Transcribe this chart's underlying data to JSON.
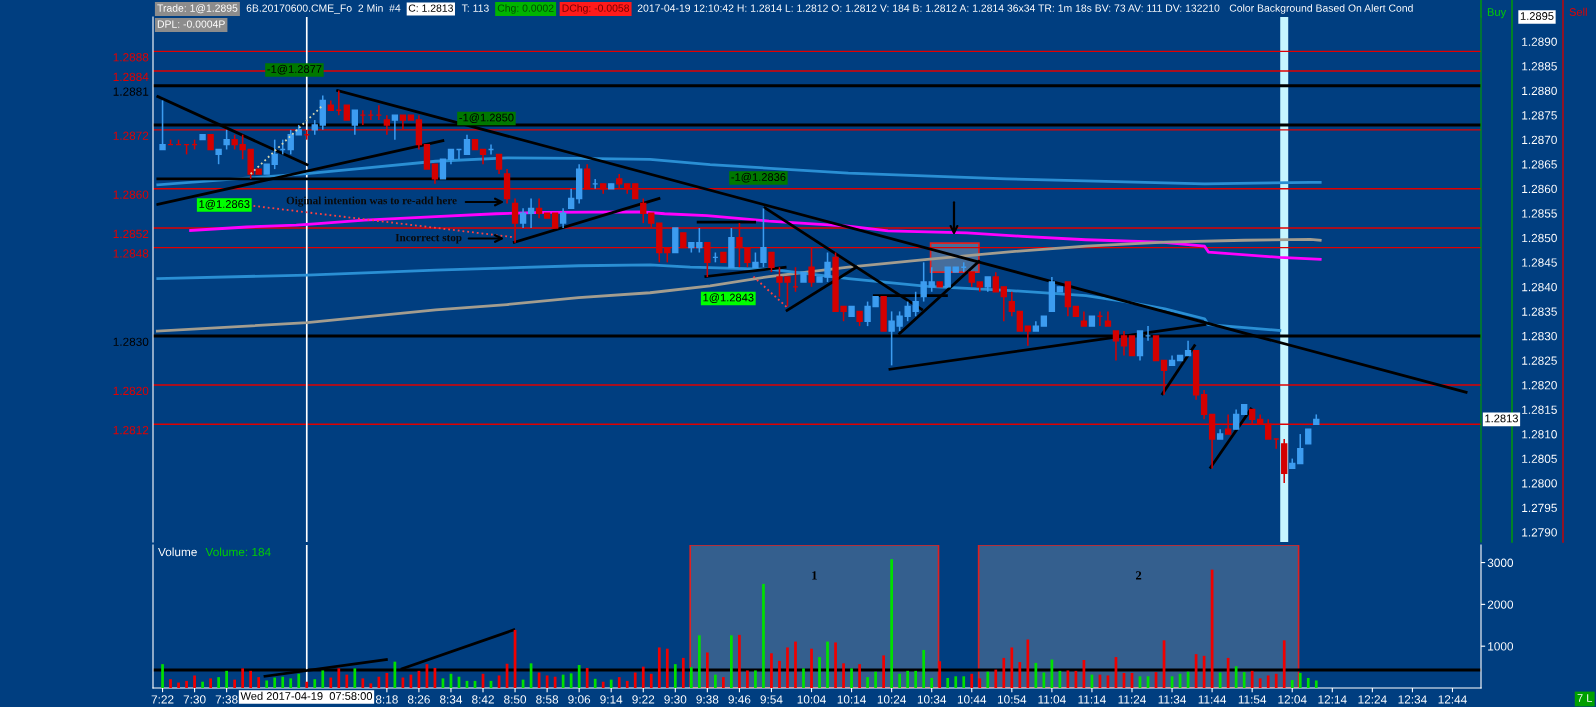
{
  "chart_data": [
    {
      "type": "candlestick",
      "x": [
        7.3667,
        7.4,
        7.4333,
        7.4667,
        7.5,
        7.5333,
        7.5667,
        7.6,
        7.6333,
        7.6667,
        7.7,
        7.7333,
        7.7667,
        7.8,
        7.8333,
        7.8667,
        7.9,
        7.9333,
        7.9667,
        8,
        8.0333,
        8.0667,
        8.1,
        8.1333,
        8.1667,
        8.2,
        8.2333,
        8.2667,
        8.3,
        8.3333,
        8.3667,
        8.4,
        8.4333,
        8.4667,
        8.5,
        8.5333,
        8.5667,
        8.6,
        8.6333,
        8.6667,
        8.7,
        8.7333,
        8.7667,
        8.8,
        8.8333,
        8.8667,
        8.9,
        8.9333,
        8.9667,
        9,
        9.0333,
        9.0667,
        9.1,
        9.1333,
        9.1667,
        9.2,
        9.2333,
        9.2667,
        9.3,
        9.3333,
        9.3667,
        9.4,
        9.4333,
        9.4667,
        9.5,
        9.5333,
        9.5667,
        9.6,
        9.6333,
        9.6667,
        9.7,
        9.7333,
        9.7667,
        9.8,
        9.8333,
        9.8667,
        9.9,
        9.9333,
        9.9667,
        10,
        10.0333,
        10.0667,
        10.1,
        10.1333,
        10.1667,
        10.2,
        10.2333,
        10.2667,
        10.3,
        10.3333,
        10.3667,
        10.4,
        10.4333,
        10.4667,
        10.5,
        10.5333,
        10.5667,
        10.6,
        10.6333,
        10.6667,
        10.7,
        10.7333,
        10.7667,
        10.8,
        10.8333,
        10.8667,
        10.9,
        10.9333,
        10.9667,
        11,
        11.0333,
        11.0667,
        11.1,
        11.1333,
        11.1667,
        11.2,
        11.2333,
        11.2667,
        11.3,
        11.3333,
        11.3667,
        11.4,
        11.4333,
        11.4667,
        11.5,
        11.5333,
        11.5667,
        11.6,
        11.6333,
        11.6667,
        11.7,
        11.7333,
        11.7667,
        11.8,
        11.8333,
        11.8667,
        11.9,
        11.9333,
        11.9667,
        12,
        12.0333,
        12.0667,
        12.1,
        12.1333,
        12.1667
      ],
      "ohlc": [
        [
          1.2868,
          1.2878,
          1.2868,
          1.2869
        ],
        [
          1.2869,
          1.287,
          1.2869,
          1.2869
        ],
        [
          1.2869,
          1.287,
          1.2869,
          1.2869
        ],
        [
          1.2869,
          1.2869,
          1.2867,
          1.2869
        ],
        [
          1.2869,
          1.287,
          1.2868,
          1.2869
        ],
        [
          1.287,
          1.2871,
          1.287,
          1.2871
        ],
        [
          1.2871,
          1.2871,
          1.2868,
          1.2868
        ],
        [
          1.2867,
          1.2868,
          1.2865,
          1.2868
        ],
        [
          1.2869,
          1.2872,
          1.2868,
          1.287
        ],
        [
          1.287,
          1.2871,
          1.2868,
          1.2869
        ],
        [
          1.2869,
          1.2871,
          1.2866,
          1.2868
        ],
        [
          1.2868,
          1.2868,
          1.2862,
          1.2863
        ],
        [
          1.2864,
          1.2864,
          1.2863,
          1.2863
        ],
        [
          1.2863,
          1.2865,
          1.2863,
          1.2865
        ],
        [
          1.2865,
          1.287,
          1.2864,
          1.2867
        ],
        [
          1.2868,
          1.287,
          1.2867,
          1.2868
        ],
        [
          1.2868,
          1.2872,
          1.2867,
          1.2871
        ],
        [
          1.2871,
          1.2873,
          1.2871,
          1.2872
        ],
        [
          1.2871,
          1.2872,
          1.287,
          1.2871
        ],
        [
          1.2872,
          1.2874,
          1.2871,
          1.2873
        ],
        [
          1.2873,
          1.2879,
          1.2872,
          1.2878
        ],
        [
          1.2877,
          1.2878,
          1.2876,
          1.2876
        ],
        [
          1.2876,
          1.288,
          1.2875,
          1.2876
        ],
        [
          1.2877,
          1.2877,
          1.2874,
          1.2874
        ],
        [
          1.2873,
          1.2876,
          1.2871,
          1.2876
        ],
        [
          1.2875,
          1.2876,
          1.2873,
          1.2875
        ],
        [
          1.2875,
          1.2876,
          1.2874,
          1.2875
        ],
        [
          1.2875,
          1.2877,
          1.2874,
          1.2875
        ],
        [
          1.2874,
          1.2875,
          1.2871,
          1.2873
        ],
        [
          1.2874,
          1.2875,
          1.287,
          1.2875
        ],
        [
          1.2875,
          1.2875,
          1.2872,
          1.2874
        ],
        [
          1.2875,
          1.2875,
          1.2874,
          1.2874
        ],
        [
          1.2874,
          1.2875,
          1.2868,
          1.2869
        ],
        [
          1.2869,
          1.2869,
          1.2864,
          1.2864
        ],
        [
          1.2865,
          1.2865,
          1.2861,
          1.2862
        ],
        [
          1.2862,
          1.2866,
          1.2862,
          1.2866
        ],
        [
          1.2866,
          1.2868,
          1.2865,
          1.2868
        ],
        [
          1.2868,
          1.2868,
          1.2866,
          1.2868
        ],
        [
          1.2867,
          1.2871,
          1.2867,
          1.287
        ],
        [
          1.287,
          1.287,
          1.2868,
          1.2868
        ],
        [
          1.2868,
          1.2868,
          1.2865,
          1.2867
        ],
        [
          1.2868,
          1.2869,
          1.2867,
          1.2868
        ],
        [
          1.2867,
          1.2867,
          1.2863,
          1.2864
        ],
        [
          1.2863,
          1.2864,
          1.2857,
          1.2858
        ],
        [
          1.2857,
          1.2858,
          1.2849,
          1.2853
        ],
        [
          1.2853,
          1.2856,
          1.2852,
          1.2855
        ],
        [
          1.2855,
          1.2858,
          1.2852,
          1.2856
        ],
        [
          1.2856,
          1.2858,
          1.2854,
          1.2855
        ],
        [
          1.2855,
          1.2855,
          1.2854,
          1.2854
        ],
        [
          1.2855,
          1.2855,
          1.2852,
          1.2852
        ],
        [
          1.2853,
          1.2856,
          1.2852,
          1.2855
        ],
        [
          1.2856,
          1.286,
          1.2856,
          1.2858
        ],
        [
          1.2858,
          1.2865,
          1.2857,
          1.2864
        ],
        [
          1.2864,
          1.2865,
          1.286,
          1.286
        ],
        [
          1.2861,
          1.2862,
          1.286,
          1.2861
        ],
        [
          1.2861,
          1.2861,
          1.2859,
          1.286
        ],
        [
          1.286,
          1.2861,
          1.286,
          1.2861
        ],
        [
          1.2862,
          1.2863,
          1.286,
          1.2861
        ],
        [
          1.2861,
          1.2861,
          1.2859,
          1.286
        ],
        [
          1.2861,
          1.2861,
          1.2858,
          1.2858
        ],
        [
          1.2857,
          1.2858,
          1.2853,
          1.2855
        ],
        [
          1.2855,
          1.2855,
          1.2852,
          1.2853
        ],
        [
          1.2853,
          1.2853,
          1.2845,
          1.2847
        ],
        [
          1.2848,
          1.2848,
          1.2845,
          1.2847
        ],
        [
          1.2847,
          1.2852,
          1.2847,
          1.2852
        ],
        [
          1.2851,
          1.2851,
          1.2848,
          1.2848
        ],
        [
          1.2848,
          1.2849,
          1.2847,
          1.2849
        ],
        [
          1.2848,
          1.2852,
          1.2847,
          1.2849
        ],
        [
          1.2849,
          1.2849,
          1.2842,
          1.2845
        ],
        [
          1.2846,
          1.2847,
          1.2845,
          1.2846
        ],
        [
          1.2847,
          1.2847,
          1.2845,
          1.2845
        ],
        [
          1.2844,
          1.2852,
          1.2844,
          1.285
        ],
        [
          1.285,
          1.2853,
          1.2844,
          1.2848
        ],
        [
          1.2848,
          1.2848,
          1.2844,
          1.2845
        ],
        [
          1.2844,
          1.2847,
          1.2844,
          1.2845
        ],
        [
          1.2845,
          1.2856,
          1.2844,
          1.2848
        ],
        [
          1.2847,
          1.2847,
          1.2843,
          1.2844
        ],
        [
          1.2842,
          1.2844,
          1.2838,
          1.2841
        ],
        [
          1.2842,
          1.2842,
          1.2836,
          1.2841
        ],
        [
          1.284,
          1.2844,
          1.2839,
          1.284
        ],
        [
          1.2841,
          1.2843,
          1.2841,
          1.2843
        ],
        [
          1.2844,
          1.2848,
          1.284,
          1.2841
        ],
        [
          1.2841,
          1.2842,
          1.2841,
          1.2842
        ],
        [
          1.2842,
          1.2847,
          1.2841,
          1.2845
        ],
        [
          1.2846,
          1.2847,
          1.2835,
          1.2835
        ],
        [
          1.2836,
          1.2836,
          1.2833,
          1.2835
        ],
        [
          1.2834,
          1.2836,
          1.2834,
          1.2836
        ],
        [
          1.2835,
          1.2835,
          1.2832,
          1.2833
        ],
        [
          1.2833,
          1.2837,
          1.2832,
          1.2836
        ],
        [
          1.2836,
          1.2838,
          1.2836,
          1.2838
        ],
        [
          1.2838,
          1.2838,
          1.2831,
          1.2831
        ],
        [
          1.2831,
          1.2835,
          1.2824,
          1.2833
        ],
        [
          1.2832,
          1.2835,
          1.2831,
          1.2834
        ],
        [
          1.2834,
          1.2837,
          1.2833,
          1.2836
        ],
        [
          1.2835,
          1.2839,
          1.2834,
          1.2837
        ],
        [
          1.2838,
          1.2845,
          1.2837,
          1.2841
        ],
        [
          1.284,
          1.2844,
          1.2839,
          1.2841
        ],
        [
          1.2841,
          1.2841,
          1.284,
          1.284
        ],
        [
          1.284,
          1.2844,
          1.284,
          1.2844
        ],
        [
          1.2843,
          1.2844,
          1.2843,
          1.2844
        ],
        [
          1.2844,
          1.2845,
          1.2843,
          1.2844
        ],
        [
          1.2843,
          1.2843,
          1.284,
          1.2841
        ],
        [
          1.2841,
          1.2841,
          1.2839,
          1.284
        ],
        [
          1.284,
          1.2842,
          1.2839,
          1.2842
        ],
        [
          1.2842,
          1.2843,
          1.2839,
          1.2839
        ],
        [
          1.284,
          1.284,
          1.2833,
          1.2838
        ],
        [
          1.2837,
          1.2839,
          1.2834,
          1.2835
        ],
        [
          1.2835,
          1.2835,
          1.2831,
          1.2831
        ],
        [
          1.2832,
          1.2832,
          1.2828,
          1.2831
        ],
        [
          1.2831,
          1.2833,
          1.2831,
          1.2832
        ],
        [
          1.2832,
          1.2834,
          1.2832,
          1.2834
        ],
        [
          1.2835,
          1.2842,
          1.2835,
          1.2841
        ],
        [
          1.2839,
          1.284,
          1.2839,
          1.284
        ],
        [
          1.2841,
          1.2841,
          1.2834,
          1.2836
        ],
        [
          1.2836,
          1.2836,
          1.2834,
          1.2834
        ],
        [
          1.2833,
          1.2835,
          1.2832,
          1.2832
        ],
        [
          1.2832,
          1.2834,
          1.2832,
          1.2834
        ],
        [
          1.2834,
          1.2835,
          1.2832,
          1.2834
        ],
        [
          1.2833,
          1.2835,
          1.2832,
          1.2832
        ],
        [
          1.2831,
          1.2831,
          1.2825,
          1.2829
        ],
        [
          1.283,
          1.2831,
          1.2826,
          1.2828
        ],
        [
          1.283,
          1.283,
          1.2826,
          1.2826
        ],
        [
          1.2826,
          1.2831,
          1.2825,
          1.2831
        ],
        [
          1.283,
          1.2832,
          1.2829,
          1.283
        ],
        [
          1.283,
          1.283,
          1.2825,
          1.2825
        ],
        [
          1.2825,
          1.2825,
          1.2818,
          1.2823
        ],
        [
          1.2824,
          1.2826,
          1.2824,
          1.2825
        ],
        [
          1.2825,
          1.2826,
          1.2825,
          1.2826
        ],
        [
          1.2826,
          1.2829,
          1.2826,
          1.2827
        ],
        [
          1.2827,
          1.2827,
          1.2817,
          1.2818
        ],
        [
          1.2818,
          1.2819,
          1.2813,
          1.2814
        ],
        [
          1.2814,
          1.2814,
          1.2803,
          1.2809
        ],
        [
          1.2809,
          1.2811,
          1.2809,
          1.281
        ],
        [
          1.2811,
          1.2814,
          1.281,
          1.281
        ],
        [
          1.2811,
          1.2815,
          1.2811,
          1.2814
        ],
        [
          1.2814,
          1.2816,
          1.2814,
          1.2816
        ],
        [
          1.2815,
          1.2815,
          1.2812,
          1.2813
        ],
        [
          1.2813,
          1.2814,
          1.2812,
          1.2812
        ],
        [
          1.2812,
          1.2813,
          1.2809,
          1.2809
        ],
        [
          1.2809,
          1.2809,
          1.2807,
          1.2809
        ],
        [
          1.2808,
          1.2809,
          1.28,
          1.2802
        ],
        [
          1.2803,
          1.2805,
          1.2803,
          1.2804
        ],
        [
          1.2804,
          1.281,
          1.2804,
          1.2807
        ],
        [
          1.2808,
          1.2811,
          1.2808,
          1.2811
        ],
        [
          1.2812,
          1.2814,
          1.2812,
          1.2813
        ]
      ],
      "colors": [
        "#3c9cf0",
        "#d40000",
        "#d40000",
        "#d40000",
        "#d40000",
        "#3c9cf0",
        "#d40000",
        "#3c9cf0",
        "#3c9cf0",
        "#d40000",
        "#d40000",
        "#d40000",
        "#d40000",
        "#3c9cf0",
        "#3c9cf0",
        "#3c9cf0",
        "#3c9cf0",
        "#3c9cf0",
        "#d40000",
        "#3c9cf0",
        "#3c9cf0",
        "#d40000",
        "#d40000",
        "#d40000",
        "#3c9cf0",
        "#d40000",
        "#d40000",
        "#d40000",
        "#d40000",
        "#3c9cf0",
        "#d40000",
        "#d40000",
        "#d40000",
        "#d40000",
        "#d40000",
        "#3c9cf0",
        "#3c9cf0",
        "#3c9cf0",
        "#3c9cf0",
        "#d40000",
        "#d40000",
        "#3c9cf0",
        "#d40000",
        "#d40000",
        "#d40000",
        "#3c9cf0",
        "#3c9cf0",
        "#d40000",
        "#d40000",
        "#d40000",
        "#3c9cf0",
        "#3c9cf0",
        "#3c9cf0",
        "#d40000",
        "#3c9cf0",
        "#d40000",
        "#3c9cf0",
        "#d40000",
        "#d40000",
        "#d40000",
        "#d40000",
        "#d40000",
        "#d40000",
        "#d40000",
        "#3c9cf0",
        "#d40000",
        "#3c9cf0",
        "#3c9cf0",
        "#d40000",
        "#3c9cf0",
        "#d40000",
        "#3c9cf0",
        "#d40000",
        "#d40000",
        "#3c9cf0",
        "#3c9cf0",
        "#d40000",
        "#d40000",
        "#d40000",
        "#d40000",
        "#3c9cf0",
        "#d40000",
        "#3c9cf0",
        "#3c9cf0",
        "#d40000",
        "#d40000",
        "#3c9cf0",
        "#d40000",
        "#3c9cf0",
        "#3c9cf0",
        "#d40000",
        "#3c9cf0",
        "#3c9cf0",
        "#3c9cf0",
        "#3c9cf0",
        "#3c9cf0",
        "#3c9cf0",
        "#d40000",
        "#3c9cf0",
        "#3c9cf0",
        "#3c9cf0",
        "#d40000",
        "#d40000",
        "#3c9cf0",
        "#d40000",
        "#d40000",
        "#d40000",
        "#d40000",
        "#d40000",
        "#3c9cf0",
        "#3c9cf0",
        "#3c9cf0",
        "#3c9cf0",
        "#d40000",
        "#d40000",
        "#d40000",
        "#3c9cf0",
        "#d40000",
        "#d40000",
        "#d40000",
        "#d40000",
        "#d40000",
        "#3c9cf0",
        "#3c9cf0",
        "#d40000",
        "#d40000",
        "#3c9cf0",
        "#3c9cf0",
        "#3c9cf0",
        "#d40000",
        "#d40000",
        "#d40000",
        "#3c9cf0",
        "#d40000",
        "#3c9cf0",
        "#3c9cf0",
        "#d40000",
        "#d40000",
        "#d40000",
        "#d40000",
        "#d40000",
        "#3c9cf0",
        "#3c9cf0",
        "#3c9cf0",
        "#3c9cf0"
      ],
      "series": [
        {
          "type": "line",
          "color": "#ff00ff",
          "x": [
            7.4833,
            7.7167,
            7.923,
            8.013,
            8.207,
            8.503,
            8.755,
            8.95,
            9.365,
            9.455,
            9.632,
            9.89,
            10.22,
            10.385,
            10.713,
            10.945,
            11.208,
            11.52,
            11.702,
            11.718,
            12.015,
            12.183
          ],
          "values": [
            1.28515,
            1.28522,
            1.28526,
            1.28529,
            1.28536,
            1.28543,
            1.28549,
            1.28552,
            1.28553,
            1.28549,
            1.28545,
            1.28534,
            1.28524,
            1.28514,
            1.2851,
            1.28503,
            1.28496,
            1.28491,
            1.28483,
            1.28471,
            1.2846,
            1.28456
          ]
        },
        {
          "type": "line",
          "color": "#a39d8f",
          "x": [
            7.345,
            7.968,
            8.503,
            8.8,
            9.098,
            9.395,
            9.645,
            9.89,
            10.22,
            10.549,
            10.878,
            11.208,
            11.537,
            11.867,
            12.142,
            12.183
          ],
          "values": [
            1.2831,
            1.28327,
            1.28353,
            1.28364,
            1.28378,
            1.28388,
            1.28402,
            1.28421,
            1.2844,
            1.28456,
            1.28471,
            1.28483,
            1.28491,
            1.28495,
            1.28497,
            1.28495
          ]
        },
        {
          "type": "line",
          "color": "#2a8fd4",
          "x": [
            7.347,
            7.968,
            8.207,
            8.503,
            8.8,
            9.098,
            9.395,
            9.645,
            10.22,
            10.878,
            11.702,
            12.142,
            12.183
          ],
          "values": [
            1.28608,
            1.28631,
            1.28642,
            1.28656,
            1.28663,
            1.28662,
            1.2866,
            1.28649,
            1.28632,
            1.2862,
            1.2861,
            1.28613,
            1.28613
          ]
        },
        {
          "type": "line",
          "color": "#2a8fd4",
          "x": [
            7.347,
            7.968,
            8.503,
            9.098,
            9.395,
            9.562,
            9.89,
            10.22,
            10.549,
            10.878,
            11.208,
            11.372,
            11.537,
            11.702,
            11.718,
            12.015
          ],
          "values": [
            1.28417,
            1.28424,
            1.28434,
            1.28443,
            1.28445,
            1.2844,
            1.28436,
            1.28417,
            1.28401,
            1.28393,
            1.28382,
            1.2837,
            1.28355,
            1.28335,
            1.28323,
            1.28311
          ]
        },
        {
          "type": "line",
          "color": "#000000",
          "x": [
            7.347,
            7.968
          ],
          "values": [
            1.28788,
            1.28649
          ]
        },
        {
          "type": "line",
          "color": "#000000",
          "x": [
            7.347,
            8.533
          ],
          "values": [
            1.28568,
            1.28698
          ]
        },
        {
          "type": "line",
          "color": "#000000",
          "x": [
            7.347,
            9.098
          ],
          "values": [
            1.2862,
            1.2862
          ]
        },
        {
          "type": "line",
          "color": "#000000",
          "x": [
            8.095,
            12.79
          ],
          "values": [
            1.288,
            1.28185
          ]
        },
        {
          "type": "line",
          "color": "#000000",
          "x": [
            8.83,
            9.432
          ],
          "values": [
            1.28491,
            1.2858
          ]
        },
        {
          "type": "line",
          "color": "#000000",
          "x": [
            9.595,
            9.83
          ],
          "values": [
            1.28532,
            1.28532
          ]
        },
        {
          "type": "line",
          "color": "#000000",
          "x": [
            9.627,
            9.957
          ],
          "values": [
            1.28421,
            1.2844
          ]
        },
        {
          "type": "line",
          "color": "#000000",
          "x": [
            9.965,
            10.253
          ],
          "values": [
            1.28352,
            1.2844
          ]
        },
        {
          "type": "line",
          "color": "#000000",
          "x": [
            9.873,
            10.525
          ],
          "values": [
            1.28561,
            1.28354
          ]
        },
        {
          "type": "line",
          "color": "#000000",
          "x": [
            10.328,
            10.628
          ],
          "values": [
            1.28382,
            1.28382
          ]
        },
        {
          "type": "line",
          "color": "#000000",
          "x": [
            10.393,
            11.702
          ],
          "values": [
            1.28232,
            1.28323
          ]
        },
        {
          "type": "line",
          "color": "#000000",
          "x": [
            10.433,
            10.763
          ],
          "values": [
            1.28305,
            1.28452
          ]
        },
        {
          "type": "line",
          "color": "#000000",
          "x": [
            11.527,
            11.66
          ],
          "values": [
            1.28182,
            1.2828
          ]
        },
        {
          "type": "line",
          "color": "#000000",
          "x": [
            11.727,
            11.895
          ],
          "values": [
            1.28032,
            1.28151
          ]
        },
        {
          "type": "line",
          "color": "#d8d8b0",
          "line_style": "dotted",
          "x": [
            7.7333,
            8.0333
          ],
          "values": [
            1.2863,
            1.2877
          ]
        },
        {
          "type": "line",
          "color": "#ff4040",
          "line_style": "dotted",
          "x": [
            7.745,
            8.83
          ],
          "values": [
            1.28565,
            1.28501
          ]
        },
        {
          "type": "line",
          "color": "#ff4040",
          "line_style": "dotted",
          "x": [
            9.825,
            9.965
          ],
          "values": [
            1.28421,
            1.28358
          ]
        }
      ],
      "ref_lines": [
        {
          "axis": "y",
          "value": 1.2888,
          "color": "#e00000",
          "label": "1.2888"
        },
        {
          "axis": "y",
          "value": 1.2884,
          "color": "#e00000",
          "label": "1.2884"
        },
        {
          "axis": "y",
          "value": 1.2881,
          "color": "#000000",
          "label": "1.2881"
        },
        {
          "axis": "y",
          "value": 1.2873,
          "color": "#000000"
        },
        {
          "axis": "y",
          "value": 1.2872,
          "color": "#e00000",
          "label": "1.2872"
        },
        {
          "axis": "y",
          "value": 1.286,
          "color": "#e00000",
          "label": "1.2860"
        },
        {
          "axis": "y",
          "value": 1.2852,
          "color": "#e00000",
          "label": "1.2852"
        },
        {
          "axis": "y",
          "value": 1.2848,
          "color": "#e00000",
          "label": "1.2848"
        },
        {
          "axis": "y",
          "value": 1.283,
          "color": "#000000",
          "label": "1.2830"
        },
        {
          "axis": "y",
          "value": 1.282,
          "color": "#e00000",
          "label": "1.2820"
        },
        {
          "axis": "y",
          "value": 1.2812,
          "color": "#e00000",
          "label": "1.2812"
        },
        {
          "axis": "x",
          "value": 7.9667,
          "color": "#ffffff"
        }
      ],
      "bands": [
        {
          "axis": "x",
          "from": 12.0167,
          "to": 12.05,
          "color": "#c6f6ff"
        }
      ],
      "annotations": [
        "Trade: 1@1.2895",
        "6B.20170600.CME_Fo  2 Min  #4",
        "C: 1.2813",
        "T: 113",
        "Chg: 0.0002",
        "DChg: -0.0058",
        "2017-04-19 12:10:42 H: 1.2814 L: 1.2812 O: 1.2812 V: 184 B: 1.2812 A: 1.2814 36x34 TR: 1m 18s BV: 73 AV: 111 DV: 132210",
        "Color Background Based On Alert Cond",
        "DPL: -0.0004P",
        "Buy",
        "Sell",
        "7 L",
        "1.2895",
        "1@1.2863",
        "-1@1.2877",
        "-1@1.2850",
        "-1@1.2836",
        "1@1.2843",
        "Oiginal intention was to re-add here",
        "Incorrect stop",
        {
          "text": "1.2813",
          "y": 1.2813
        }
      ],
      "xlim": [
        7.327,
        12.852
      ],
      "ylim": [
        1.2788,
        1.2895
      ],
      "yticks": [
        {
          "value": 1.279,
          "label": "1.2790"
        },
        1.2795,
        {
          "value": 1.28,
          "label": "1.2800"
        },
        1.2805,
        {
          "value": 1.281,
          "label": "1.2810"
        },
        1.2815,
        {
          "value": 1.282,
          "label": "1.2820"
        },
        1.2825,
        {
          "value": 1.283,
          "label": "1.2830"
        },
        1.2835,
        {
          "value": 1.284,
          "label": "1.2840"
        },
        1.2845,
        {
          "value": 1.285,
          "label": "1.2850"
        },
        1.2855,
        {
          "value": 1.286,
          "label": "1.2860"
        },
        1.2865,
        {
          "value": 1.287,
          "label": "1.2870"
        },
        1.2875,
        {
          "value": 1.288,
          "label": "1.2880"
        },
        1.2885,
        {
          "value": 1.289,
          "label": "1.2890"
        }
      ],
      "tick_labels": "y"
    },
    {
      "type": "bar",
      "x": [
        7.3667,
        7.4,
        7.4333,
        7.4667,
        7.5,
        7.5333,
        7.5667,
        7.6,
        7.6333,
        7.6667,
        7.7,
        7.7333,
        7.7667,
        7.8,
        7.8333,
        7.8667,
        7.9,
        7.9333,
        7.9667,
        8,
        8.0333,
        8.0667,
        8.1,
        8.1333,
        8.1667,
        8.2,
        8.2333,
        8.2667,
        8.3,
        8.3333,
        8.3667,
        8.4,
        8.4333,
        8.4667,
        8.5,
        8.5333,
        8.5667,
        8.6,
        8.6333,
        8.6667,
        8.7,
        8.7333,
        8.7667,
        8.8,
        8.8333,
        8.8667,
        8.9,
        8.9333,
        8.9667,
        9,
        9.0333,
        9.0667,
        9.1,
        9.1333,
        9.1667,
        9.2,
        9.2333,
        9.2667,
        9.3,
        9.3333,
        9.3667,
        9.4,
        9.4333,
        9.4667,
        9.5,
        9.5333,
        9.5667,
        9.6,
        9.6333,
        9.6667,
        9.7,
        9.7333,
        9.7667,
        9.8,
        9.8333,
        9.8667,
        9.9,
        9.9333,
        9.9667,
        10,
        10.0333,
        10.0667,
        10.1,
        10.1333,
        10.1667,
        10.2,
        10.2333,
        10.2667,
        10.3,
        10.3333,
        10.3667,
        10.4,
        10.4333,
        10.4667,
        10.5,
        10.5333,
        10.5667,
        10.6,
        10.6333,
        10.6667,
        10.7,
        10.7333,
        10.7667,
        10.8,
        10.8333,
        10.8667,
        10.9,
        10.9333,
        10.9667,
        11,
        11.0333,
        11.0667,
        11.1,
        11.1333,
        11.1667,
        11.2,
        11.2333,
        11.2667,
        11.3,
        11.3333,
        11.3667,
        11.4,
        11.4333,
        11.4667,
        11.5,
        11.5333,
        11.5667,
        11.6,
        11.6333,
        11.6667,
        11.7,
        11.7333,
        11.7667,
        11.8,
        11.8333,
        11.8667,
        11.9,
        11.9333,
        11.9667,
        12,
        12.0333,
        12.0667,
        12.1,
        12.1333,
        12.1667
      ],
      "values": [
        570,
        210,
        130,
        170,
        300,
        150,
        230,
        260,
        410,
        200,
        470,
        410,
        260,
        180,
        250,
        270,
        230,
        340,
        150,
        210,
        420,
        250,
        470,
        320,
        470,
        230,
        110,
        270,
        360,
        630,
        250,
        320,
        410,
        570,
        480,
        230,
        340,
        270,
        170,
        170,
        340,
        170,
        300,
        580,
        1390,
        200,
        590,
        370,
        300,
        270,
        320,
        350,
        550,
        480,
        220,
        150,
        200,
        260,
        170,
        370,
        510,
        340,
        970,
        940,
        570,
        720,
        500,
        1260,
        850,
        320,
        260,
        1260,
        1270,
        420,
        420,
        2490,
        830,
        650,
        970,
        1110,
        470,
        940,
        740,
        1110,
        1090,
        590,
        470,
        570,
        260,
        390,
        780,
        3080,
        340,
        410,
        410,
        910,
        240,
        640,
        240,
        280,
        280,
        340,
        230,
        390,
        440,
        720,
        970,
        620,
        1160,
        600,
        370,
        680,
        410,
        420,
        410,
        670,
        320,
        320,
        300,
        740,
        360,
        360,
        280,
        280,
        380,
        1140,
        280,
        340,
        390,
        810,
        770,
        2830,
        370,
        720,
        520,
        380,
        410,
        230,
        300,
        340,
        1140,
        190,
        360,
        240,
        180
      ],
      "colors": [
        "#00e000",
        "#f00000",
        "#f00000",
        "#f00000",
        "#f00000",
        "#00e000",
        "#f00000",
        "#00e000",
        "#00e000",
        "#f00000",
        "#f00000",
        "#f00000",
        "#f00000",
        "#00e000",
        "#00e000",
        "#00e000",
        "#00e000",
        "#00e000",
        "#f00000",
        "#00e000",
        "#00e000",
        "#f00000",
        "#f00000",
        "#f00000",
        "#00e000",
        "#f00000",
        "#f00000",
        "#f00000",
        "#f00000",
        "#00e000",
        "#f00000",
        "#f00000",
        "#f00000",
        "#f00000",
        "#f00000",
        "#00e000",
        "#00e000",
        "#00e000",
        "#00e000",
        "#00e000",
        "#f00000",
        "#00e000",
        "#f00000",
        "#f00000",
        "#f00000",
        "#00e000",
        "#00e000",
        "#f00000",
        "#f00000",
        "#f00000",
        "#00e000",
        "#00e000",
        "#00e000",
        "#f00000",
        "#00e000",
        "#f00000",
        "#00e000",
        "#f00000",
        "#f00000",
        "#f00000",
        "#f00000",
        "#f00000",
        "#f00000",
        "#f00000",
        "#00e000",
        "#f00000",
        "#00e000",
        "#00e000",
        "#f00000",
        "#00e000",
        "#f00000",
        "#00e000",
        "#f00000",
        "#f00000",
        "#00e000",
        "#00e000",
        "#f00000",
        "#f00000",
        "#f00000",
        "#f00000",
        "#00e000",
        "#f00000",
        "#00e000",
        "#00e000",
        "#f00000",
        "#f00000",
        "#00e000",
        "#f00000",
        "#00e000",
        "#00e000",
        "#f00000",
        "#00e000",
        "#00e000",
        "#00e000",
        "#00e000",
        "#00e000",
        "#00e000",
        "#f00000",
        "#00e000",
        "#00e000",
        "#00e000",
        "#f00000",
        "#f00000",
        "#00e000",
        "#f00000",
        "#f00000",
        "#f00000",
        "#f00000",
        "#f00000",
        "#00e000",
        "#00e000",
        "#00e000",
        "#00e000",
        "#f00000",
        "#f00000",
        "#f00000",
        "#00e000",
        "#f00000",
        "#f00000",
        "#f00000",
        "#f00000",
        "#f00000",
        "#00e000",
        "#00e000",
        "#f00000",
        "#f00000",
        "#00e000",
        "#00e000",
        "#00e000",
        "#f00000",
        "#f00000",
        "#f00000",
        "#00e000",
        "#f00000",
        "#00e000",
        "#00e000",
        "#f00000",
        "#f00000",
        "#f00000",
        "#f00000",
        "#f00000",
        "#00e000",
        "#00e000",
        "#00e000",
        "#00e000"
      ],
      "series": [
        {
          "type": "line",
          "color": "#000000",
          "x": [
            7.793,
            8.298
          ],
          "values": [
            280,
            680
          ]
        },
        {
          "type": "line",
          "color": "#000000",
          "x": [
            8.363,
            8.828
          ],
          "values": [
            460,
            1390
          ]
        }
      ],
      "ref_lines": [
        {
          "axis": "y",
          "value": 430,
          "color": "#000000"
        },
        {
          "axis": "x",
          "value": 7.9667,
          "color": "#ffffff"
        }
      ],
      "bands": [
        {
          "axis": "x",
          "from": 9.562,
          "to": 10.595,
          "label": "1",
          "color": "#345f8e"
        },
        {
          "axis": "x",
          "from": 10.762,
          "to": 12.093,
          "label": "2",
          "color": "#345f8e"
        }
      ],
      "annotations": [
        "Volume",
        "Volume: 184",
        "Wed 2017-04-19  07:58:00"
      ],
      "xlim": [
        7.327,
        12.852
      ],
      "ylim": [
        0,
        3420
      ],
      "xticks": [
        {
          "value": 7.3667,
          "label": "7:22"
        },
        {
          "value": 7.5,
          "label": "7:30"
        },
        {
          "value": 7.6333,
          "label": "7:38"
        },
        {
          "value": 8.3,
          "label": "8:18"
        },
        {
          "value": 8.4333,
          "label": "8:26"
        },
        {
          "value": 8.5667,
          "label": "8:34"
        },
        {
          "value": 8.7,
          "label": "8:42"
        },
        {
          "value": 8.8333,
          "label": "8:50"
        },
        {
          "value": 8.9667,
          "label": "8:58"
        },
        {
          "value": 9.1,
          "label": "9:06"
        },
        {
          "value": 9.2333,
          "label": "9:14"
        },
        {
          "value": 9.3667,
          "label": "9:22"
        },
        {
          "value": 9.5,
          "label": "9:30"
        },
        {
          "value": 9.6333,
          "label": "9:38"
        },
        {
          "value": 9.7667,
          "label": "9:46"
        },
        {
          "value": 9.9,
          "label": "9:54"
        },
        {
          "value": 10.0667,
          "label": "10:04"
        },
        {
          "value": 10.2333,
          "label": "10:14"
        },
        {
          "value": 10.4,
          "label": "10:24"
        },
        {
          "value": 10.5667,
          "label": "10:34"
        },
        {
          "value": 10.7333,
          "label": "10:44"
        },
        {
          "value": 10.9,
          "label": "10:54"
        },
        {
          "value": 11.0667,
          "label": "11:04"
        },
        {
          "value": 11.2333,
          "label": "11:14"
        },
        {
          "value": 11.4,
          "label": "11:24"
        },
        {
          "value": 11.5667,
          "label": "11:34"
        },
        {
          "value": 11.7333,
          "label": "11:44"
        },
        {
          "value": 11.9,
          "label": "11:54"
        },
        {
          "value": 12.0667,
          "label": "12:04"
        },
        {
          "value": 12.2333,
          "label": "12:14"
        },
        {
          "value": 12.4,
          "label": "12:24"
        },
        {
          "value": 12.5667,
          "label": "12:34"
        },
        {
          "value": 12.7333,
          "label": "12:44"
        }
      ],
      "yticks": [
        1000,
        2000,
        3000
      ]
    }
  ]
}
